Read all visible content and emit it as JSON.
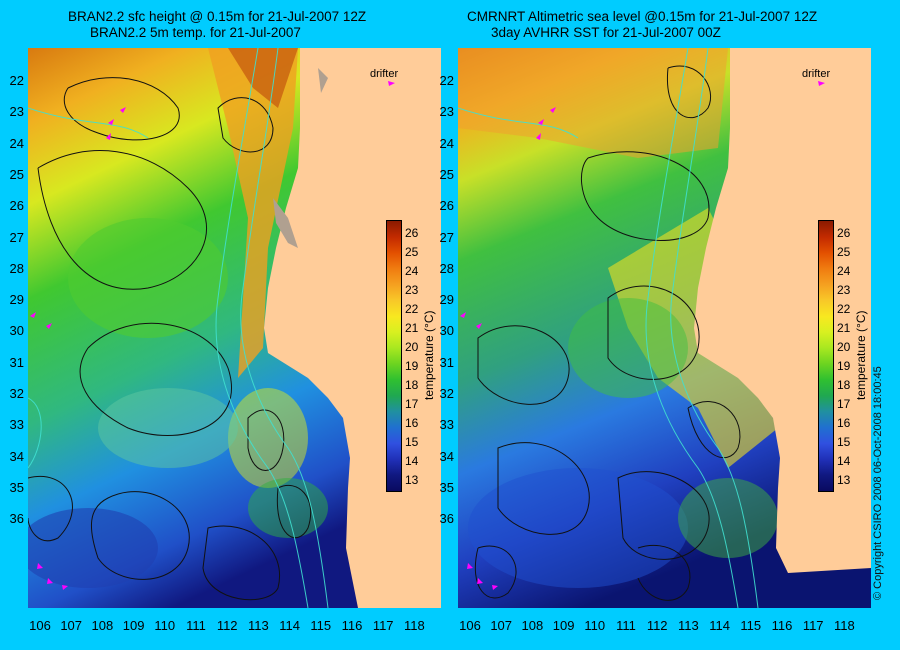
{
  "left": {
    "title_line1": "BRAN2.2 sfc height @ 0.15m for 21-Jul-2007 12Z",
    "title_line2": "BRAN2.2 5m temp. for 21-Jul-2007"
  },
  "right": {
    "title_line1": "CMRNRT Altimetric sea level  @0.15m  for 21-Jul-2007 12Z",
    "title_line2": "3day AVHRR SST for 21-Jul-2007 00Z"
  },
  "lat_labels": [
    "22",
    "23",
    "24",
    "25",
    "26",
    "27",
    "28",
    "29",
    "30",
    "31",
    "32",
    "33",
    "34",
    "35",
    "36"
  ],
  "lon_labels": [
    "106",
    "107",
    "108",
    "109",
    "110",
    "111",
    "112",
    "113",
    "114",
    "115",
    "116",
    "117",
    "118"
  ],
  "colorbar": {
    "ticks": [
      "26",
      "25",
      "24",
      "23",
      "22",
      "21",
      "20",
      "19",
      "18",
      "17",
      "16",
      "15",
      "14",
      "13"
    ],
    "title": "temperature (°C)",
    "colors": [
      "#8b1a00",
      "#c22a00",
      "#e35000",
      "#f07c10",
      "#f5a020",
      "#f8c828",
      "#f8e820",
      "#d8f020",
      "#a8e820",
      "#6cd420",
      "#30c030",
      "#20a850",
      "#2090a0",
      "#2070d0",
      "#3050e0",
      "#2030b8",
      "#101880",
      "#0a0a60"
    ]
  },
  "map_labels": {
    "drifter": "drifter"
  },
  "copyright": "© Copyright CSIRO 2008     06-Oct-2008 18:00:45",
  "colors": {
    "land": "#ffcc99",
    "background": "#00ccff",
    "drifter": "#ff00ff",
    "isobath": "#40e0d0"
  }
}
